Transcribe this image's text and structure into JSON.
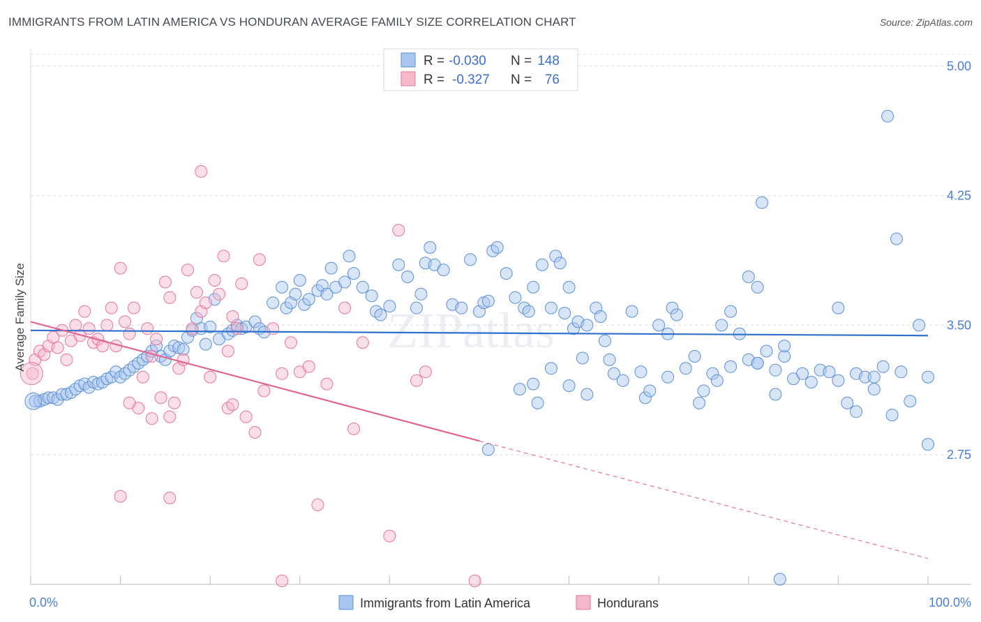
{
  "title": "IMMIGRANTS FROM LATIN AMERICA VS HONDURAN AVERAGE FAMILY SIZE CORRELATION CHART",
  "source": "Source: ZipAtlas.com",
  "watermark": "ZIPatlas",
  "colors": {
    "blue": "#5b8fd6",
    "blue_fill": "#a9c6ee",
    "pink": "#e8739b",
    "pink_fill": "#f5b8cb",
    "tick": "#4a7fd6"
  },
  "legend": {
    "rows": [
      {
        "r_label": "R =",
        "r_value": "-0.030",
        "n_label": "N =",
        "n_value": "148"
      },
      {
        "r_label": "R =",
        "r_value": "-0.327",
        "n_label": "N =",
        "n_value": "76"
      }
    ]
  },
  "chart_data": {
    "type": "scatter",
    "title": "IMMIGRANTS FROM LATIN AMERICA VS HONDURAN AVERAGE FAMILY SIZE CORRELATION CHART",
    "xlabel": "",
    "ylabel": "Average Family Size",
    "xlim": [
      0,
      100
    ],
    "ylim": [
      2.0,
      5.1
    ],
    "x_tick_labels": [
      "0.0%",
      "100.0%"
    ],
    "y_ticks": [
      2.75,
      3.5,
      4.25,
      5.0
    ],
    "y_tick_labels": [
      "2.75",
      "3.50",
      "4.25",
      "5.00"
    ],
    "grid": true,
    "legend_position": "top-center",
    "series": [
      {
        "name": "Immigrants from Latin America",
        "color": "#5b8fd6",
        "trend": {
          "x": [
            0,
            100
          ],
          "y": [
            3.47,
            3.44
          ]
        },
        "points": [
          [
            0.5,
            3.06
          ],
          [
            1,
            3.06
          ],
          [
            1.5,
            3.07
          ],
          [
            2,
            3.08
          ],
          [
            2.5,
            3.08
          ],
          [
            3,
            3.07
          ],
          [
            3.5,
            3.1
          ],
          [
            4,
            3.1
          ],
          [
            4.5,
            3.11
          ],
          [
            5,
            3.13
          ],
          [
            5.5,
            3.15
          ],
          [
            6,
            3.16
          ],
          [
            6.5,
            3.14
          ],
          [
            7,
            3.17
          ],
          [
            7.5,
            3.16
          ],
          [
            8,
            3.17
          ],
          [
            8.5,
            3.19
          ],
          [
            9,
            3.2
          ],
          [
            9.5,
            3.23
          ],
          [
            10,
            3.2
          ],
          [
            10.5,
            3.22
          ],
          [
            11,
            3.24
          ],
          [
            11.5,
            3.26
          ],
          [
            12,
            3.28
          ],
          [
            12.5,
            3.3
          ],
          [
            13,
            3.32
          ],
          [
            13.5,
            3.35
          ],
          [
            14,
            3.38
          ],
          [
            14.5,
            3.32
          ],
          [
            15,
            3.3
          ],
          [
            15.5,
            3.35
          ],
          [
            16,
            3.38
          ],
          [
            16.5,
            3.37
          ],
          [
            17,
            3.36
          ],
          [
            17.5,
            3.43
          ],
          [
            18,
            3.47
          ],
          [
            18.5,
            3.54
          ],
          [
            19,
            3.48
          ],
          [
            19.5,
            3.39
          ],
          [
            20,
            3.49
          ],
          [
            20.5,
            3.65
          ],
          [
            21,
            3.42
          ],
          [
            22,
            3.45
          ],
          [
            22.5,
            3.47
          ],
          [
            23,
            3.5
          ],
          [
            23.5,
            3.48
          ],
          [
            24,
            3.49
          ],
          [
            25,
            3.52
          ],
          [
            25.5,
            3.48
          ],
          [
            26,
            3.46
          ],
          [
            27,
            3.63
          ],
          [
            28,
            3.72
          ],
          [
            28.5,
            3.6
          ],
          [
            29,
            3.63
          ],
          [
            29.5,
            3.68
          ],
          [
            30,
            3.76
          ],
          [
            30.5,
            3.62
          ],
          [
            31,
            3.65
          ],
          [
            32,
            3.7
          ],
          [
            32.5,
            3.73
          ],
          [
            33,
            3.68
          ],
          [
            33.5,
            3.83
          ],
          [
            34,
            3.72
          ],
          [
            35,
            3.75
          ],
          [
            35.5,
            3.9
          ],
          [
            36,
            3.8
          ],
          [
            37,
            3.72
          ],
          [
            38,
            3.67
          ],
          [
            38.5,
            3.58
          ],
          [
            39,
            3.56
          ],
          [
            40,
            3.61
          ],
          [
            41,
            3.85
          ],
          [
            42,
            3.78
          ],
          [
            43,
            3.6
          ],
          [
            43.5,
            3.68
          ],
          [
            44,
            3.86
          ],
          [
            44.5,
            3.95
          ],
          [
            45,
            3.85
          ],
          [
            46,
            3.82
          ],
          [
            47,
            3.62
          ],
          [
            48,
            3.6
          ],
          [
            49,
            3.88
          ],
          [
            50,
            3.58
          ],
          [
            50.5,
            3.63
          ],
          [
            51,
            3.64
          ],
          [
            51.5,
            3.93
          ],
          [
            52,
            3.95
          ],
          [
            53,
            3.8
          ],
          [
            54,
            3.66
          ],
          [
            55,
            3.6
          ],
          [
            55.5,
            3.58
          ],
          [
            56,
            3.72
          ],
          [
            57,
            3.85
          ],
          [
            58,
            3.6
          ],
          [
            58.5,
            3.9
          ],
          [
            59,
            3.86
          ],
          [
            59.5,
            3.57
          ],
          [
            60,
            3.72
          ],
          [
            60.5,
            3.48
          ],
          [
            61,
            3.52
          ],
          [
            62,
            3.5
          ],
          [
            63,
            3.6
          ],
          [
            63.5,
            3.55
          ],
          [
            64,
            3.41
          ],
          [
            64.5,
            3.3
          ],
          [
            65,
            3.22
          ],
          [
            66,
            3.18
          ],
          [
            67,
            3.58
          ],
          [
            68,
            3.23
          ],
          [
            68.5,
            3.08
          ],
          [
            69,
            3.12
          ],
          [
            70,
            3.5
          ],
          [
            71,
            3.45
          ],
          [
            71.5,
            3.6
          ],
          [
            72,
            3.56
          ],
          [
            73,
            3.25
          ],
          [
            74,
            3.32
          ],
          [
            74.5,
            3.05
          ],
          [
            75,
            3.12
          ],
          [
            76,
            3.22
          ],
          [
            76.5,
            3.18
          ],
          [
            77,
            3.5
          ],
          [
            78,
            3.26
          ],
          [
            79,
            3.45
          ],
          [
            80,
            3.3
          ],
          [
            81,
            3.28
          ],
          [
            82,
            3.35
          ],
          [
            83,
            3.24
          ],
          [
            84,
            3.32
          ],
          [
            85,
            3.19
          ],
          [
            86,
            3.22
          ],
          [
            87,
            3.17
          ],
          [
            88,
            3.24
          ],
          [
            89,
            3.23
          ],
          [
            90,
            3.6
          ],
          [
            91,
            3.05
          ],
          [
            92,
            3.22
          ],
          [
            93,
            3.2
          ],
          [
            94,
            3.13
          ],
          [
            95,
            3.26
          ],
          [
            96,
            2.98
          ],
          [
            97,
            3.23
          ],
          [
            98,
            3.06
          ],
          [
            99,
            3.5
          ],
          [
            100,
            3.2
          ],
          [
            56,
            3.16
          ],
          [
            58,
            3.25
          ],
          [
            60,
            3.15
          ],
          [
            62,
            3.1
          ],
          [
            80,
            3.78
          ],
          [
            96.5,
            4.0
          ],
          [
            95.5,
            4.71
          ],
          [
            81.5,
            4.21
          ],
          [
            81,
            3.72
          ],
          [
            90,
            3.18
          ],
          [
            81,
            3.28
          ],
          [
            71,
            3.2
          ],
          [
            61.5,
            3.31
          ],
          [
            56.5,
            3.05
          ],
          [
            54.5,
            3.13
          ],
          [
            51,
            2.78
          ],
          [
            94,
            3.2
          ],
          [
            83,
            3.1
          ],
          [
            92,
            3.0
          ],
          [
            84,
            3.38
          ],
          [
            78,
            3.58
          ],
          [
            100,
            2.81
          ],
          [
            83.5,
            2.03
          ]
        ]
      },
      {
        "name": "Hondurans",
        "color": "#e8739b",
        "trend": {
          "x": [
            0,
            50
          ],
          "y": [
            3.52,
            2.83
          ]
        },
        "trend_ext": {
          "x": [
            50,
            100
          ],
          "y": [
            2.83,
            2.15
          ]
        },
        "points": [
          [
            0.2,
            3.22
          ],
          [
            0.5,
            3.3
          ],
          [
            1,
            3.35
          ],
          [
            1.5,
            3.33
          ],
          [
            2,
            3.38
          ],
          [
            2.5,
            3.43
          ],
          [
            3,
            3.37
          ],
          [
            3.5,
            3.47
          ],
          [
            4,
            3.3
          ],
          [
            4.5,
            3.41
          ],
          [
            5,
            3.5
          ],
          [
            5.5,
            3.44
          ],
          [
            6,
            3.58
          ],
          [
            6.5,
            3.48
          ],
          [
            7,
            3.4
          ],
          [
            7.5,
            3.42
          ],
          [
            8,
            3.38
          ],
          [
            8.5,
            3.5
          ],
          [
            9,
            3.6
          ],
          [
            9.5,
            3.38
          ],
          [
            10,
            3.83
          ],
          [
            10.5,
            3.52
          ],
          [
            11,
            3.45
          ],
          [
            11.5,
            3.6
          ],
          [
            12,
            3.02
          ],
          [
            12.5,
            3.2
          ],
          [
            13,
            3.48
          ],
          [
            13.5,
            3.32
          ],
          [
            14,
            3.42
          ],
          [
            14.5,
            3.08
          ],
          [
            15,
            3.75
          ],
          [
            15.5,
            3.66
          ],
          [
            16,
            3.05
          ],
          [
            16.5,
            3.25
          ],
          [
            17,
            3.3
          ],
          [
            17.5,
            3.82
          ],
          [
            18,
            3.48
          ],
          [
            18.5,
            3.69
          ],
          [
            19,
            3.58
          ],
          [
            19.5,
            3.63
          ],
          [
            20,
            3.2
          ],
          [
            20.5,
            3.76
          ],
          [
            21,
            3.68
          ],
          [
            21.5,
            3.9
          ],
          [
            22,
            3.35
          ],
          [
            22.5,
            3.55
          ],
          [
            23,
            3.48
          ],
          [
            23.5,
            3.74
          ],
          [
            24,
            2.97
          ],
          [
            25,
            2.88
          ],
          [
            25.5,
            3.88
          ],
          [
            26,
            3.12
          ],
          [
            27,
            3.48
          ],
          [
            28,
            3.22
          ],
          [
            29,
            3.4
          ],
          [
            30,
            3.23
          ],
          [
            31,
            3.26
          ],
          [
            32,
            2.46
          ],
          [
            33,
            3.16
          ],
          [
            35,
            3.6
          ],
          [
            36,
            2.9
          ],
          [
            37,
            3.4
          ],
          [
            41,
            4.05
          ],
          [
            40,
            2.28
          ],
          [
            43,
            3.18
          ],
          [
            44,
            3.23
          ],
          [
            19,
            4.39
          ],
          [
            13.5,
            2.96
          ],
          [
            15.5,
            2.97
          ],
          [
            22,
            3.02
          ],
          [
            22.5,
            3.04
          ],
          [
            10,
            2.51
          ],
          [
            28,
            2.02
          ],
          [
            49.5,
            2.02
          ],
          [
            15.5,
            2.5
          ],
          [
            11,
            3.05
          ]
        ]
      }
    ]
  },
  "bottom_legend": [
    "Immigrants from Latin America",
    "Hondurans"
  ]
}
